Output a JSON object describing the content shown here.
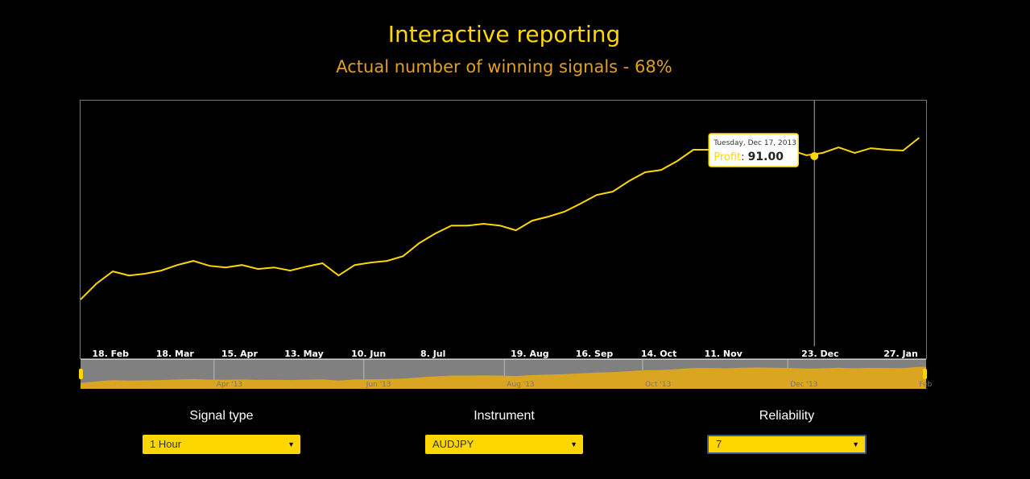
{
  "header": {
    "title": "Interactive reporting",
    "subtitle": "Actual number of winning signals - 68%"
  },
  "chart_data": {
    "type": "line",
    "title": "Interactive reporting",
    "subtitle": "Actual number of winning signals - 68%",
    "series": [
      {
        "name": "Profit",
        "start_date": "2013-02-05",
        "interval_days": 7,
        "values": [
          0,
          10.2,
          17.8,
          15.2,
          16.3,
          18.3,
          21.8,
          24.4,
          21.3,
          20.3,
          21.8,
          19.3,
          20.3,
          18.3,
          20.8,
          22.9,
          15.2,
          21.8,
          23.4,
          24.4,
          27.4,
          35.6,
          41.7,
          46.7,
          46.7,
          47.8,
          46.7,
          43.7,
          49.8,
          52.3,
          55.4,
          60.5,
          66.0,
          68.1,
          74.7,
          80.3,
          81.8,
          87.4,
          94.5,
          94.5,
          92.5,
          96.5,
          97.5,
          96.5,
          94.5,
          91.0,
          92.5,
          96.0,
          92.5,
          95.5,
          94.5,
          94.0,
          102.1
        ]
      }
    ],
    "ylim": [
      -37,
      125.5
    ],
    "xlim_days": [
      0,
      367
    ],
    "x_ticks": [
      {
        "label": "18. Feb",
        "day": 13
      },
      {
        "label": "18. Mar",
        "day": 41
      },
      {
        "label": "15. Apr",
        "day": 69
      },
      {
        "label": "13. May",
        "day": 97
      },
      {
        "label": "10. Jun",
        "day": 125
      },
      {
        "label": "8. Jul",
        "day": 153
      },
      {
        "label": "19. Aug",
        "day": 195
      },
      {
        "label": "16. Sep",
        "day": 223
      },
      {
        "label": "14. Oct",
        "day": 251
      },
      {
        "label": "11. Nov",
        "day": 279
      },
      {
        "label": "23. Dec",
        "day": 321
      },
      {
        "label": "27. Jan",
        "day": 356
      }
    ],
    "navigator_ticks": [
      {
        "label": "Apr '13",
        "day": 59
      },
      {
        "label": "Jun '13",
        "day": 124
      },
      {
        "label": "Aug '13",
        "day": 185
      },
      {
        "label": "Oct '13",
        "day": 245
      },
      {
        "label": "Dec '13",
        "day": 308
      },
      {
        "label": "Feb",
        "day": 364
      }
    ],
    "tooltip": {
      "date": "Tuesday, Dec 17, 2013",
      "label": "Profit",
      "value": "91.00",
      "index": 45
    },
    "grid": false,
    "legend": "none",
    "colors": {
      "line": "#ffd700",
      "navigator_fill": "#daa520",
      "navigator_bg": "#808080"
    }
  },
  "controls": [
    {
      "label": "Signal type",
      "value": "1 Hour"
    },
    {
      "label": "Instrument",
      "value": "AUDJPY"
    },
    {
      "label": "Reliability",
      "value": "7"
    }
  ]
}
